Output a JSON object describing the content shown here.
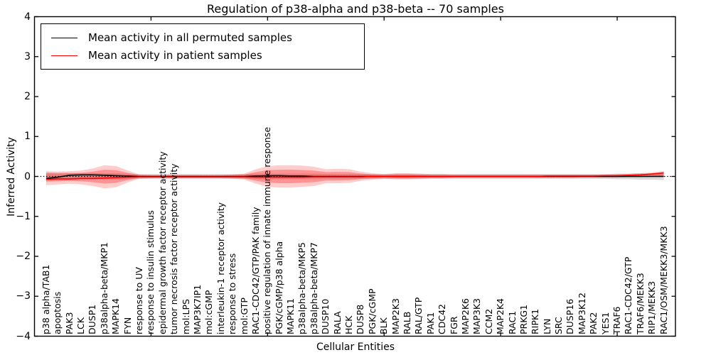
{
  "figure": {
    "title": "Regulation of p38-alpha and p38-beta -- 70 samples",
    "xlabel": "Cellular Entities",
    "ylabel": "Inferred Activity"
  },
  "legend": {
    "items": [
      {
        "label": "Mean activity in all permuted samples",
        "color": "#000000"
      },
      {
        "label": "Mean activity in patient samples",
        "color": "#ff0000"
      }
    ]
  },
  "axes": {
    "y_tick_labels": [
      "4",
      "3",
      "2",
      "1",
      "0",
      "−1",
      "−2",
      "−3",
      "−4"
    ],
    "y_tick_values": [
      4,
      3,
      2,
      1,
      0,
      -1,
      -2,
      -3,
      -4
    ],
    "x_major_tick_values": [
      10,
      20,
      30,
      40,
      50
    ]
  },
  "chart_data": {
    "type": "line",
    "title": "Regulation of p38-alpha and p38-beta -- 70 samples",
    "xlabel": "Cellular Entities",
    "ylabel": "Inferred Activity",
    "ylim": [
      -4,
      4
    ],
    "grid": false,
    "zero_line_dotted": true,
    "legend_position": "upper left",
    "categories": [
      "p38 alpha/TAB1",
      "apoptosis",
      "PAK3",
      "LCK",
      "DUSP1",
      "p38alpha-beta/MKP1",
      "MAPK14",
      "FYN",
      "response to UV",
      "response to insulin stimulus",
      "epidermal growth factor receptor activity",
      "tumor necrosis factor receptor activity",
      "mol:LPS",
      "MAP3K7IP1",
      "mol:cGMP",
      "interleukin-1 receptor activity",
      "response to stress",
      "mol:GTP",
      "RAC1-CDC42/GTP/PAK family",
      "positive regulation of innate immune response",
      "PGK/cGMP/p38 alpha",
      "MAPK11",
      "p38alpha-beta/MKP5",
      "p38alpha-beta/MKP7",
      "DUSP10",
      "RALA",
      "HCK",
      "DUSP8",
      "PGK/cGMP",
      "BLK",
      "MAP2K3",
      "RALB",
      "RAL/GTP",
      "PAK1",
      "CDC42",
      "FGR",
      "MAP2K6",
      "MAP3K3",
      "CCM2",
      "MAP2K4",
      "RAC1",
      "PRKG1",
      "RIPK1",
      "LYN",
      "SRC",
      "DUSP16",
      "MAP3K12",
      "PAK2",
      "YES1",
      "TRAF6",
      "RAC1-CDC42/GTP",
      "TRAF6/MEKK3",
      "RIP1/MEKK3",
      "RAC1/OSM/MEKK3/MKK3"
    ],
    "series": [
      {
        "name": "Mean activity in all permuted samples",
        "color": "#000000",
        "values": [
          -0.05,
          -0.02,
          0.03,
          0.04,
          0.04,
          0.03,
          0.02,
          0.01,
          0,
          0,
          0,
          0,
          0,
          0,
          0,
          0,
          0,
          0,
          0.01,
          0.02,
          0.02,
          0.01,
          0.01,
          0,
          0,
          0,
          0,
          0,
          0,
          0,
          0,
          0,
          0,
          0,
          0,
          0,
          0,
          0,
          0,
          0,
          0,
          0,
          0,
          0,
          0,
          0,
          0,
          0,
          0,
          0,
          0,
          0,
          0,
          0
        ]
      },
      {
        "name": "Mean activity in patient samples",
        "color": "#ff0000",
        "values": [
          -0.07,
          -0.06,
          -0.06,
          -0.05,
          -0.05,
          -0.04,
          -0.03,
          -0.02,
          -0.01,
          -0.01,
          -0.01,
          -0.01,
          -0.01,
          -0.01,
          -0.01,
          -0.01,
          -0.01,
          -0.01,
          -0.02,
          -0.02,
          -0.02,
          -0.02,
          -0.02,
          -0.01,
          -0.01,
          -0.01,
          -0.01,
          -0.01,
          0,
          0,
          0,
          0,
          0,
          0,
          0,
          0,
          0,
          0,
          0,
          0,
          0,
          0,
          0,
          0.01,
          0.01,
          0.01,
          0.01,
          0.01,
          0.02,
          0.02,
          0.03,
          0.04,
          0.06,
          0.09
        ]
      }
    ],
    "bands": [
      {
        "name": "patient-samples-spread-outer",
        "fill": "rgba(255,0,0,0.20)",
        "hi": [
          0.13,
          0.12,
          0.13,
          0.15,
          0.2,
          0.28,
          0.26,
          0.15,
          0.05,
          0.04,
          0.04,
          0.04,
          0.04,
          0.04,
          0.04,
          0.04,
          0.05,
          0.07,
          0.18,
          0.26,
          0.28,
          0.28,
          0.27,
          0.24,
          0.18,
          0.19,
          0.18,
          0.12,
          0.08,
          0.06,
          0.08,
          0.08,
          0.07,
          0.06,
          0.06,
          0.05,
          0.05,
          0.05,
          0.05,
          0.05,
          0.05,
          0.05,
          0.05,
          0.05,
          0.05,
          0.05,
          0.05,
          0.05,
          0.05,
          0.06,
          0.07,
          0.08,
          0.1,
          0.14
        ],
        "lo": [
          -0.22,
          -0.2,
          -0.18,
          -0.2,
          -0.24,
          -0.3,
          -0.27,
          -0.15,
          -0.06,
          -0.05,
          -0.05,
          -0.05,
          -0.05,
          -0.05,
          -0.05,
          -0.05,
          -0.06,
          -0.08,
          -0.18,
          -0.26,
          -0.28,
          -0.28,
          -0.26,
          -0.24,
          -0.17,
          -0.17,
          -0.16,
          -0.11,
          -0.08,
          -0.06,
          -0.07,
          -0.07,
          -0.06,
          -0.05,
          -0.05,
          -0.04,
          -0.04,
          -0.04,
          -0.04,
          -0.04,
          -0.04,
          -0.04,
          -0.04,
          -0.04,
          -0.04,
          -0.04,
          -0.03,
          -0.03,
          -0.03,
          -0.03,
          -0.02,
          -0.02,
          -0.01,
          0
        ]
      },
      {
        "name": "patient-samples-spread-inner",
        "fill": "rgba(255,0,0,0.28)",
        "scale_of_outer": 0.6
      },
      {
        "name": "permuted-samples-spread",
        "fill": "rgba(130,130,130,0.30)",
        "halfwidth": [
          0.1,
          0.09,
          0.09,
          0.08,
          0.08,
          0.08,
          0.08,
          0.07,
          0.06,
          0.06,
          0.06,
          0.06,
          0.06,
          0.06,
          0.06,
          0.06,
          0.06,
          0.06,
          0.07,
          0.07,
          0.07,
          0.07,
          0.07,
          0.07,
          0.06,
          0.06,
          0.06,
          0.06,
          0.06,
          0.06,
          0.07,
          0.07,
          0.07,
          0.06,
          0.06,
          0.06,
          0.06,
          0.06,
          0.06,
          0.06,
          0.06,
          0.06,
          0.06,
          0.06,
          0.06,
          0.06,
          0.06,
          0.06,
          0.06,
          0.07,
          0.07,
          0.08,
          0.08,
          0.09
        ]
      }
    ]
  }
}
